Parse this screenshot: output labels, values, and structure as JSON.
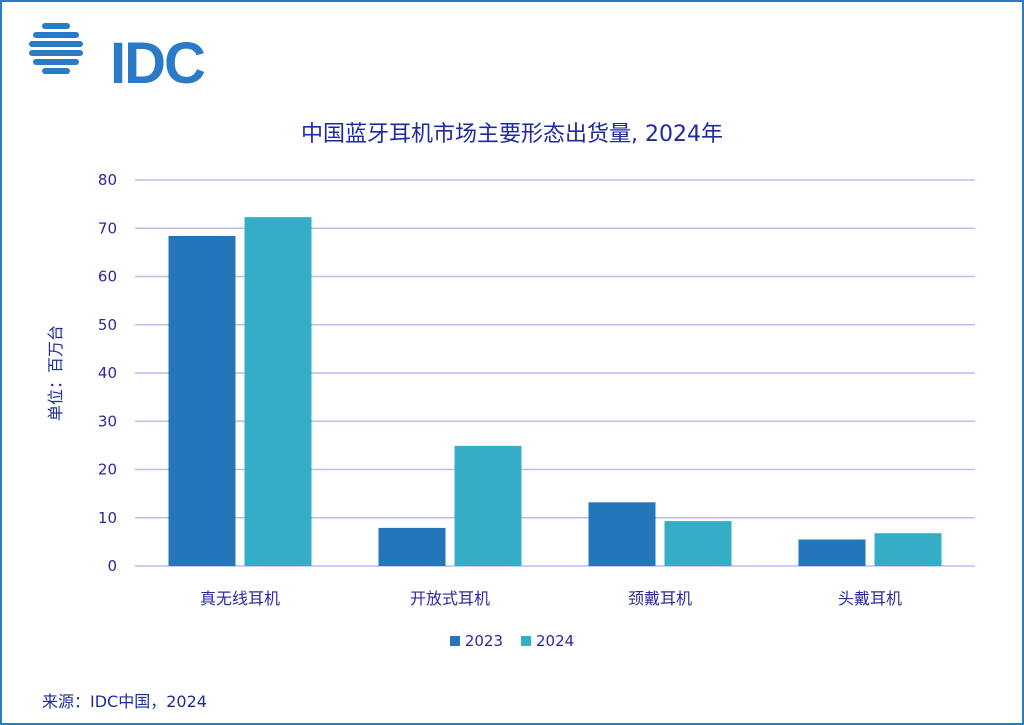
{
  "logo": {
    "text": "IDC",
    "color": "#2a7ac8"
  },
  "chart_data": {
    "type": "bar",
    "title": "中国蓝牙耳机市场主要形态出货量, 2024年",
    "ylabel": "单位：百万台",
    "xlabel": "",
    "categories": [
      "真无线耳机",
      "开放式耳机",
      "颈戴耳机",
      "头戴耳机"
    ],
    "series": [
      {
        "name": "2023",
        "color": "#2476b8",
        "values": [
          68.4,
          7.9,
          13.2,
          5.5
        ]
      },
      {
        "name": "2024",
        "color": "#36adc6",
        "values": [
          72.3,
          24.9,
          9.3,
          6.8
        ]
      }
    ],
    "ylim": [
      0,
      80
    ],
    "yticks": [
      "0",
      "10",
      "20",
      "30",
      "40",
      "50",
      "60",
      "70",
      "80"
    ],
    "grid": true,
    "legend": "bottom"
  },
  "source": "来源：IDC中国，2024"
}
